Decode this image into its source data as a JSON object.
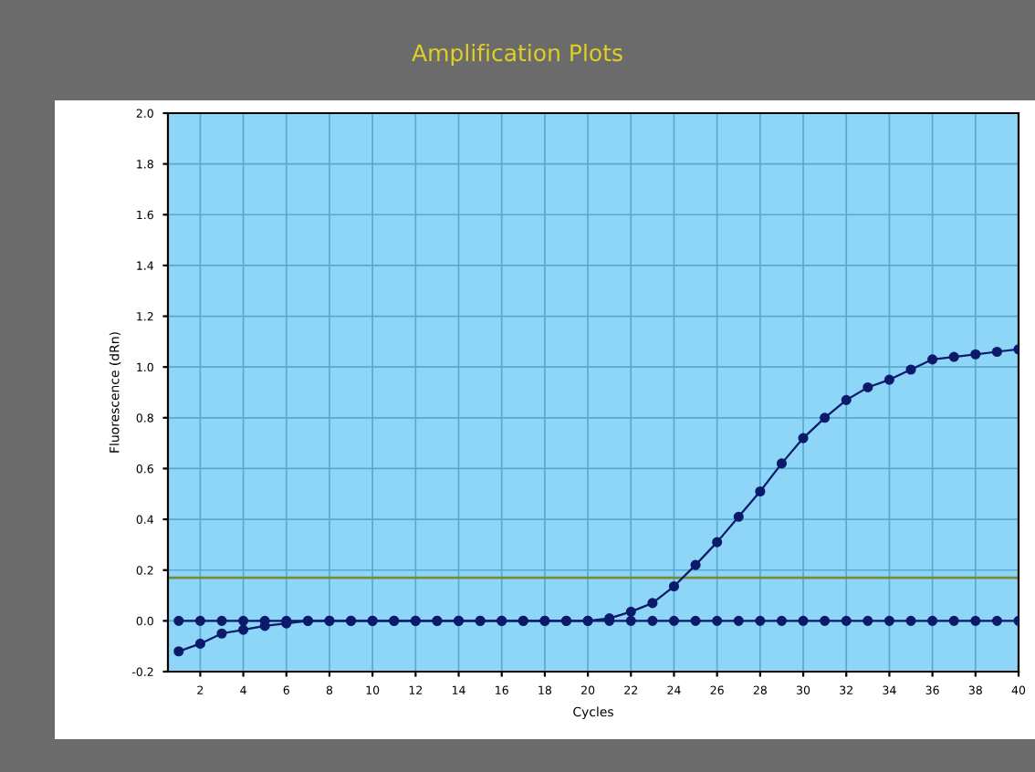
{
  "chart_data": {
    "type": "line",
    "title": "Amplification Plots",
    "xlabel": "Cycles",
    "ylabel": "Fluorescence (dRn)",
    "x": [
      1,
      2,
      3,
      4,
      5,
      6,
      7,
      8,
      9,
      10,
      11,
      12,
      13,
      14,
      15,
      16,
      17,
      18,
      19,
      20,
      21,
      22,
      23,
      24,
      25,
      26,
      27,
      28,
      29,
      30,
      31,
      32,
      33,
      34,
      35,
      36,
      37,
      38,
      39,
      40
    ],
    "series": [
      {
        "color": "#0b1a6b",
        "values": [
          -0.12,
          -0.09,
          -0.05,
          -0.035,
          -0.02,
          -0.01,
          0,
          0,
          0,
          0,
          0,
          0,
          0,
          0,
          0,
          0,
          0,
          0,
          0,
          0,
          0.01,
          0.036,
          0.07,
          0.136,
          0.22,
          0.31,
          0.41,
          0.51,
          0.62,
          0.72,
          0.8,
          0.87,
          0.92,
          0.95,
          0.99,
          1.03,
          1.04,
          1.05,
          1.06,
          1.07
        ]
      },
      {
        "color": "#0b1a6b",
        "values": [
          0,
          0,
          0,
          0,
          0,
          0,
          0,
          0,
          0,
          0,
          0,
          0,
          0,
          0,
          0,
          0,
          0,
          0,
          0,
          0,
          0,
          0,
          0,
          0,
          0,
          0,
          0,
          0,
          0,
          0,
          0,
          0,
          0,
          0,
          0,
          0,
          0,
          0,
          0,
          0
        ]
      }
    ],
    "marker": "circle",
    "line_style": "solid",
    "xlim": [
      0.5,
      40
    ],
    "ylim": [
      -0.2,
      2.0
    ],
    "xticks": [
      2,
      4,
      6,
      8,
      10,
      12,
      14,
      16,
      18,
      20,
      22,
      24,
      26,
      28,
      30,
      32,
      34,
      36,
      38,
      40
    ],
    "yticks": [
      -0.2,
      {
        "value": 0,
        "label": "0.0"
      },
      0.2,
      0.4,
      0.6,
      0.8,
      {
        "value": 1,
        "label": "1.0"
      },
      1.2,
      1.4,
      1.6,
      1.8,
      {
        "value": 2,
        "label": "2.0"
      }
    ],
    "ref_lines": [
      {
        "axis": "y",
        "value": 0.17,
        "color": "#7a8a3a"
      }
    ],
    "grid": true
  }
}
